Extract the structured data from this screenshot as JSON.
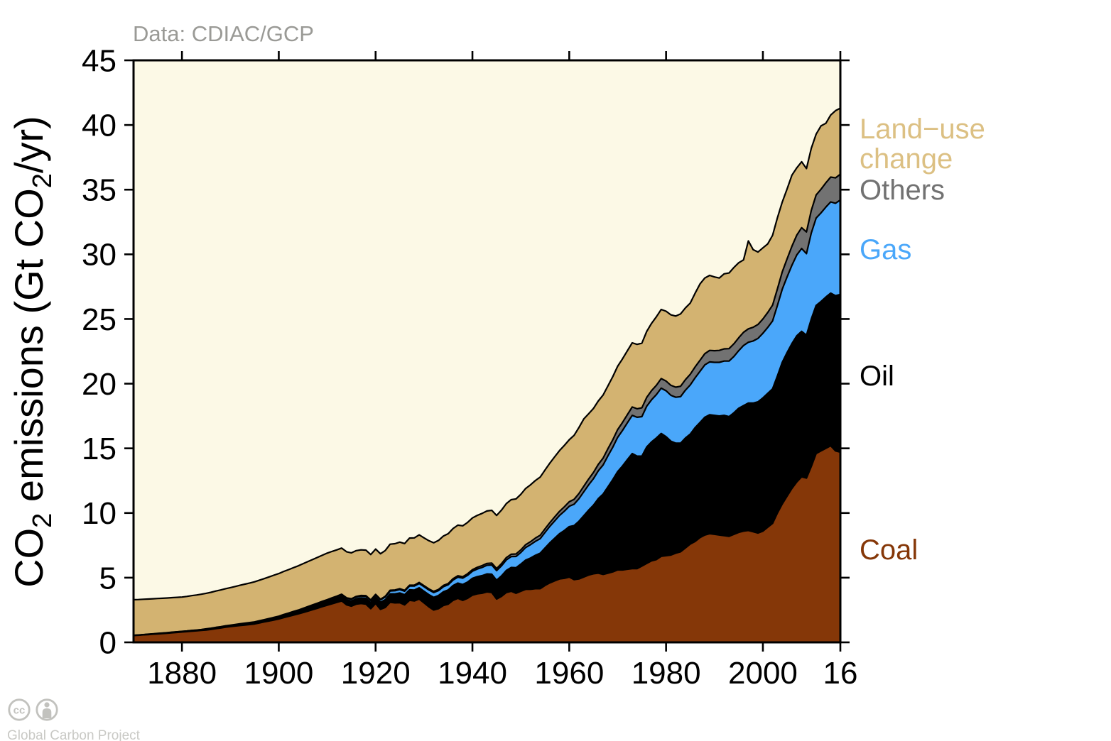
{
  "header": {
    "source_label": "Data: CDIAC/GCP"
  },
  "footer": {
    "credit": "Global Carbon Project"
  },
  "chart_data": {
    "type": "area",
    "stacked": true,
    "title": "Data: CDIAC/GCP",
    "units": "Gt CO2/yr",
    "plot_background": "#FCF9E6",
    "frame_color": "#000000",
    "x": {
      "start_year": 1870,
      "end_year": 2016,
      "ticks": [
        1880,
        1900,
        1920,
        1940,
        1960,
        1980,
        2000,
        2016
      ],
      "tick_labels": [
        "1880",
        "1900",
        "1920",
        "1940",
        "1960",
        "1980",
        "2000",
        "16"
      ]
    },
    "y": {
      "min": 0,
      "max": 45,
      "ticks": [
        0,
        5,
        10,
        15,
        20,
        25,
        30,
        35,
        40,
        45
      ],
      "label_parts": [
        "CO",
        "2",
        " emissions (Gt CO",
        "2",
        "/yr)"
      ]
    },
    "series": [
      {
        "name": "coal",
        "label": "Coal",
        "color": "#853708",
        "values": [
          0.53,
          0.55,
          0.58,
          0.6,
          0.63,
          0.65,
          0.68,
          0.71,
          0.74,
          0.77,
          0.8,
          0.83,
          0.86,
          0.89,
          0.92,
          0.95,
          1.0,
          1.06,
          1.11,
          1.17,
          1.22,
          1.26,
          1.3,
          1.34,
          1.38,
          1.42,
          1.5,
          1.58,
          1.65,
          1.73,
          1.81,
          1.91,
          2.01,
          2.1,
          2.2,
          2.3,
          2.41,
          2.53,
          2.64,
          2.76,
          2.87,
          2.98,
          3.09,
          3.2,
          2.9,
          2.8,
          2.95,
          3.0,
          2.95,
          2.6,
          3.0,
          2.55,
          2.7,
          3.1,
          3.05,
          3.07,
          2.9,
          3.25,
          3.2,
          3.35,
          3.05,
          2.75,
          2.5,
          2.6,
          2.85,
          2.95,
          3.25,
          3.4,
          3.25,
          3.4,
          3.65,
          3.75,
          3.8,
          3.9,
          3.85,
          3.35,
          3.55,
          3.85,
          3.95,
          3.8,
          3.95,
          4.1,
          4.1,
          4.15,
          4.15,
          4.4,
          4.6,
          4.75,
          4.9,
          4.95,
          5.05,
          4.85,
          4.9,
          5.05,
          5.2,
          5.3,
          5.35,
          5.25,
          5.35,
          5.45,
          5.6,
          5.6,
          5.65,
          5.7,
          5.7,
          5.9,
          6.1,
          6.3,
          6.4,
          6.65,
          6.7,
          6.75,
          6.9,
          7.0,
          7.3,
          7.6,
          7.8,
          8.1,
          8.3,
          8.4,
          8.35,
          8.3,
          8.25,
          8.2,
          8.35,
          8.5,
          8.6,
          8.65,
          8.55,
          8.45,
          8.6,
          8.9,
          9.2,
          10.0,
          10.7,
          11.3,
          11.9,
          12.4,
          12.8,
          12.7,
          13.6,
          14.6,
          14.8,
          15.0,
          15.2,
          14.8,
          14.7
        ]
      },
      {
        "name": "oil",
        "label": "Oil",
        "color": "#000000",
        "values": [
          0.01,
          0.01,
          0.01,
          0.02,
          0.02,
          0.02,
          0.02,
          0.02,
          0.03,
          0.03,
          0.03,
          0.03,
          0.04,
          0.04,
          0.05,
          0.05,
          0.05,
          0.06,
          0.06,
          0.07,
          0.07,
          0.08,
          0.09,
          0.09,
          0.1,
          0.11,
          0.12,
          0.12,
          0.13,
          0.14,
          0.15,
          0.17,
          0.18,
          0.2,
          0.21,
          0.23,
          0.24,
          0.26,
          0.27,
          0.29,
          0.3,
          0.32,
          0.34,
          0.36,
          0.38,
          0.4,
          0.42,
          0.44,
          0.46,
          0.48,
          0.5,
          0.55,
          0.6,
          0.65,
          0.7,
          0.75,
          0.78,
          0.81,
          0.84,
          0.87,
          0.9,
          0.94,
          0.98,
          1.02,
          1.06,
          1.1,
          1.14,
          1.18,
          1.22,
          1.26,
          1.3,
          1.33,
          1.36,
          1.39,
          1.42,
          1.45,
          1.58,
          1.71,
          1.84,
          1.97,
          2.1,
          2.26,
          2.42,
          2.58,
          2.74,
          2.9,
          3.1,
          3.3,
          3.5,
          3.7,
          3.9,
          4.18,
          4.46,
          4.74,
          5.02,
          5.3,
          5.76,
          6.22,
          6.68,
          7.14,
          7.6,
          8.03,
          8.47,
          8.9,
          8.7,
          8.5,
          9.0,
          9.2,
          9.4,
          9.5,
          9.2,
          8.8,
          8.5,
          8.4,
          8.5,
          8.5,
          8.8,
          8.9,
          9.1,
          9.2,
          9.2,
          9.2,
          9.3,
          9.25,
          9.4,
          9.6,
          9.7,
          9.85,
          9.95,
          10.15,
          10.3,
          10.35,
          10.4,
          10.6,
          10.95,
          11.1,
          11.2,
          11.3,
          11.25,
          11.05,
          11.4,
          11.45,
          11.55,
          11.7,
          11.8,
          12.0,
          12.2
        ]
      },
      {
        "name": "gas",
        "label": "Gas",
        "color": "#4AA7FA",
        "values": [
          0.0,
          0.0,
          0.0,
          0.0,
          0.0,
          0.01,
          0.01,
          0.01,
          0.01,
          0.01,
          0.01,
          0.01,
          0.01,
          0.01,
          0.01,
          0.02,
          0.02,
          0.02,
          0.02,
          0.02,
          0.02,
          0.02,
          0.02,
          0.03,
          0.03,
          0.03,
          0.03,
          0.03,
          0.04,
          0.04,
          0.04,
          0.05,
          0.05,
          0.06,
          0.06,
          0.07,
          0.08,
          0.08,
          0.09,
          0.09,
          0.1,
          0.11,
          0.11,
          0.12,
          0.12,
          0.13,
          0.14,
          0.14,
          0.15,
          0.15,
          0.16,
          0.18,
          0.2,
          0.22,
          0.24,
          0.26,
          0.27,
          0.29,
          0.31,
          0.33,
          0.35,
          0.36,
          0.37,
          0.38,
          0.39,
          0.4,
          0.43,
          0.46,
          0.49,
          0.52,
          0.55,
          0.59,
          0.63,
          0.67,
          0.71,
          0.75,
          0.78,
          0.81,
          0.84,
          0.87,
          0.9,
          0.97,
          1.03,
          1.08,
          1.13,
          1.2,
          1.27,
          1.34,
          1.41,
          1.49,
          1.57,
          1.65,
          1.75,
          1.85,
          1.95,
          2.05,
          2.15,
          2.25,
          2.4,
          2.5,
          2.65,
          2.75,
          2.85,
          2.95,
          3.0,
          3.05,
          3.15,
          3.25,
          3.35,
          3.5,
          3.55,
          3.55,
          3.55,
          3.6,
          3.7,
          3.8,
          3.85,
          3.95,
          4.05,
          4.08,
          4.1,
          4.15,
          4.2,
          4.3,
          4.35,
          4.45,
          4.65,
          4.7,
          4.8,
          4.9,
          5.0,
          5.1,
          5.25,
          5.45,
          5.65,
          5.85,
          6.05,
          6.25,
          6.4,
          6.3,
          6.65,
          6.75,
          6.85,
          6.95,
          7.05,
          7.15,
          7.3
        ]
      },
      {
        "name": "others",
        "label": "Others",
        "color": "#727272",
        "values": [
          0.01,
          0.01,
          0.01,
          0.01,
          0.01,
          0.01,
          0.01,
          0.01,
          0.01,
          0.01,
          0.01,
          0.01,
          0.01,
          0.01,
          0.01,
          0.02,
          0.02,
          0.02,
          0.02,
          0.02,
          0.02,
          0.02,
          0.02,
          0.02,
          0.02,
          0.02,
          0.02,
          0.02,
          0.02,
          0.02,
          0.02,
          0.02,
          0.02,
          0.02,
          0.02,
          0.03,
          0.03,
          0.03,
          0.03,
          0.03,
          0.03,
          0.03,
          0.03,
          0.04,
          0.04,
          0.04,
          0.04,
          0.04,
          0.05,
          0.05,
          0.05,
          0.05,
          0.06,
          0.06,
          0.06,
          0.07,
          0.07,
          0.07,
          0.07,
          0.08,
          0.08,
          0.08,
          0.09,
          0.09,
          0.1,
          0.1,
          0.1,
          0.11,
          0.11,
          0.12,
          0.12,
          0.13,
          0.14,
          0.14,
          0.15,
          0.16,
          0.17,
          0.18,
          0.18,
          0.19,
          0.2,
          0.22,
          0.23,
          0.25,
          0.26,
          0.28,
          0.29,
          0.31,
          0.32,
          0.34,
          0.35,
          0.38,
          0.4,
          0.43,
          0.45,
          0.48,
          0.5,
          0.53,
          0.55,
          0.58,
          0.6,
          0.62,
          0.63,
          0.65,
          0.66,
          0.68,
          0.69,
          0.71,
          0.72,
          0.74,
          0.75,
          0.77,
          0.78,
          0.8,
          0.81,
          0.83,
          0.84,
          0.86,
          0.87,
          0.89,
          0.9,
          0.92,
          0.94,
          0.96,
          0.98,
          1.0,
          1.02,
          1.04,
          1.06,
          1.08,
          1.1,
          1.16,
          1.22,
          1.28,
          1.34,
          1.4,
          1.47,
          1.54,
          1.61,
          1.68,
          1.75,
          1.79,
          1.83,
          1.88,
          1.92,
          1.96,
          2.0
        ]
      },
      {
        "name": "land_use_change",
        "label": "Land−use change",
        "label_lines": [
          "Land−use",
          "change"
        ],
        "color": "#D3B371",
        "label_color": "#DCC083",
        "values": [
          2.75,
          2.74,
          2.73,
          2.72,
          2.71,
          2.7,
          2.69,
          2.68,
          2.67,
          2.66,
          2.65,
          2.67,
          2.69,
          2.71,
          2.73,
          2.75,
          2.78,
          2.81,
          2.84,
          2.87,
          2.9,
          2.94,
          2.98,
          3.02,
          3.06,
          3.1,
          3.14,
          3.18,
          3.22,
          3.26,
          3.3,
          3.33,
          3.36,
          3.39,
          3.42,
          3.45,
          3.48,
          3.51,
          3.54,
          3.57,
          3.6,
          3.59,
          3.58,
          3.57,
          3.56,
          3.55,
          3.54,
          3.53,
          3.52,
          3.51,
          3.5,
          3.52,
          3.54,
          3.56,
          3.58,
          3.6,
          3.62,
          3.64,
          3.66,
          3.68,
          3.7,
          3.73,
          3.76,
          3.79,
          3.82,
          3.85,
          3.88,
          3.91,
          3.94,
          3.97,
          4.0,
          4.02,
          4.04,
          4.06,
          4.08,
          4.1,
          4.14,
          4.18,
          4.22,
          4.26,
          4.3,
          4.35,
          4.4,
          4.45,
          4.5,
          4.55,
          4.6,
          4.65,
          4.7,
          4.75,
          4.8,
          4.95,
          5.1,
          5.2,
          5.05,
          4.95,
          4.9,
          4.88,
          4.86,
          4.88,
          4.9,
          4.92,
          4.94,
          4.96,
          4.98,
          5.0,
          5.1,
          5.2,
          5.3,
          5.35,
          5.4,
          5.45,
          5.5,
          5.6,
          5.55,
          5.5,
          5.7,
          5.9,
          5.85,
          5.8,
          5.7,
          5.6,
          5.8,
          5.85,
          5.9,
          5.8,
          5.6,
          6.8,
          6.0,
          5.6,
          5.5,
          5.3,
          5.4,
          5.5,
          5.4,
          5.4,
          5.5,
          5.2,
          5.1,
          4.9,
          4.8,
          4.7,
          4.9,
          4.6,
          4.8,
          5.2,
          5.1
        ]
      }
    ]
  }
}
